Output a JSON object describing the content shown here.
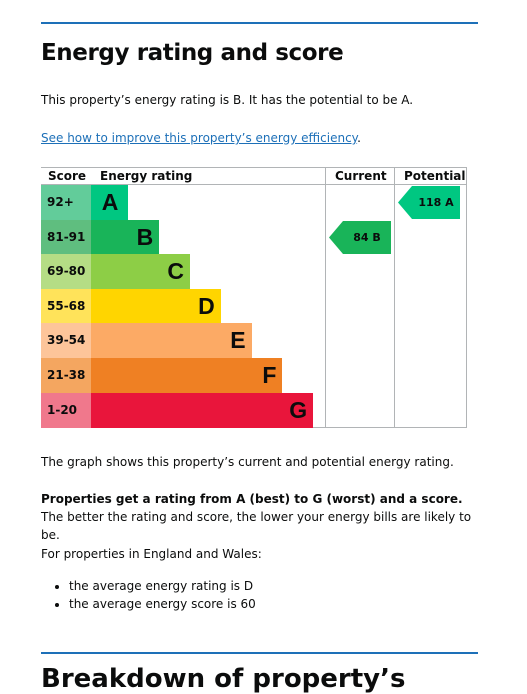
{
  "heading": "Energy rating and score",
  "summary": "This property’s energy rating is B. It has the potential to be A.",
  "improve_link": "See how to improve this property’s energy efficiency",
  "improve_link_suffix": ".",
  "chart_data": {
    "type": "bar",
    "headers": {
      "score": "Score",
      "rating": "Energy rating",
      "current": "Current",
      "potential": "Potential"
    },
    "bands": [
      {
        "range": "92+",
        "letter": "A",
        "color": "#00c781",
        "score_bg": "#62cc9a",
        "width": 0.23
      },
      {
        "range": "81-91",
        "letter": "B",
        "color": "#19b459",
        "score_bg": "#5fbe7f",
        "width": 0.34
      },
      {
        "range": "69-80",
        "letter": "C",
        "color": "#8dce46",
        "score_bg": "#b5dd85",
        "width": 0.45
      },
      {
        "range": "55-68",
        "letter": "D",
        "color": "#ffd500",
        "score_bg": "#ffe35a",
        "width": 0.56
      },
      {
        "range": "39-54",
        "letter": "E",
        "color": "#fcaa65",
        "score_bg": "#fdc59a",
        "width": 0.67
      },
      {
        "range": "21-38",
        "letter": "F",
        "color": "#ef8023",
        "score_bg": "#f4a660",
        "width": 0.78
      },
      {
        "range": "1-20",
        "letter": "G",
        "color": "#e9153b",
        "score_bg": "#f0788c",
        "width": 0.89
      }
    ],
    "current": {
      "label": "84 B",
      "score": 84,
      "band": "B",
      "color": "#19b459"
    },
    "potential": {
      "label": "118 A",
      "score": 118,
      "band": "A",
      "color": "#00c781"
    }
  },
  "graph_caption": "The graph shows this property’s current and potential energy rating.",
  "ratings_explain_bold": "Properties get a rating from A (best) to G (worst) and a score.",
  "ratings_explain_rest": " The better the rating and score, the lower your energy bills are likely to be.",
  "region_intro": "For properties in England and Wales:",
  "averages": [
    "the average energy rating is D",
    "the average energy score is 60"
  ],
  "next_heading": "Breakdown of property’s"
}
